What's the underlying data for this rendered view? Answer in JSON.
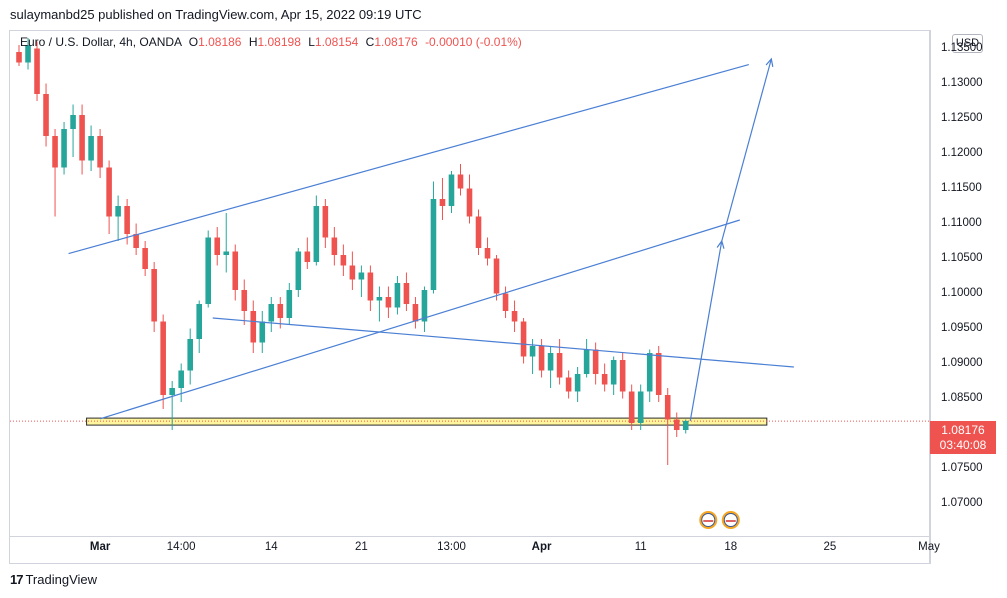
{
  "header": {
    "publisher": "sulaymanbd25 published on TradingView.com, Apr 15, 2022 09:19 UTC"
  },
  "legend": {
    "symbol": "Euro / U.S. Dollar, 4h, OANDA",
    "open_label": "O",
    "open": "1.08186",
    "high_label": "H",
    "high": "1.08198",
    "low_label": "L",
    "low": "1.08154",
    "close_label": "C",
    "close": "1.08176",
    "change": "-0.00010 (-0.01%)"
  },
  "currency_button": "USD",
  "last_price": {
    "price": "1.08176",
    "countdown": "03:40:08"
  },
  "footer": {
    "brand_mark": "17",
    "brand": "TradingView"
  },
  "colors": {
    "up": "#26a69a",
    "down": "#ef5350",
    "lines": "#4a7fd4",
    "zone_fill": "#fff59d",
    "zone_border": "#2b2b2b"
  },
  "chart_data": {
    "type": "candlestick",
    "instrument": "Euro / U.S. Dollar",
    "interval": "4h",
    "ylim": [
      1.0655,
      1.1375
    ],
    "y_ticks": [
      "1.13500",
      "1.13000",
      "1.12500",
      "1.12000",
      "1.11500",
      "1.11000",
      "1.10500",
      "1.10000",
      "1.09500",
      "1.09000",
      "1.08500",
      "1.08000",
      "1.07500",
      "1.07000"
    ],
    "x_ticks": [
      {
        "label": "Mar",
        "bold": true
      },
      {
        "label": "14:00",
        "bold": false
      },
      {
        "label": "14",
        "bold": false
      },
      {
        "label": "21",
        "bold": false
      },
      {
        "label": "13:00",
        "bold": false
      },
      {
        "label": "Apr",
        "bold": true
      },
      {
        "label": "11",
        "bold": false
      },
      {
        "label": "18",
        "bold": false
      },
      {
        "label": "25",
        "bold": false
      },
      {
        "label": "May",
        "bold": false
      }
    ],
    "xlim": [
      0,
      102
    ],
    "x_tick_positions": [
      10,
      19,
      29,
      39,
      49,
      59,
      70,
      80,
      91,
      102
    ],
    "candles": [
      [
        1,
        1.1345,
        1.1355,
        1.1325,
        1.133
      ],
      [
        2,
        1.133,
        1.1365,
        1.132,
        1.1355
      ],
      [
        3,
        1.135,
        1.136,
        1.1275,
        1.1285
      ],
      [
        4,
        1.1285,
        1.13,
        1.121,
        1.1225
      ],
      [
        5,
        1.1225,
        1.1235,
        1.111,
        1.118
      ],
      [
        6,
        1.118,
        1.1245,
        1.117,
        1.1235
      ],
      [
        7,
        1.1235,
        1.127,
        1.1195,
        1.1255
      ],
      [
        8,
        1.1255,
        1.127,
        1.117,
        1.119
      ],
      [
        9,
        1.119,
        1.124,
        1.1175,
        1.1225
      ],
      [
        10,
        1.1225,
        1.1235,
        1.1165,
        1.118
      ],
      [
        11,
        1.118,
        1.119,
        1.1085,
        1.111
      ],
      [
        12,
        1.111,
        1.114,
        1.1075,
        1.1125
      ],
      [
        13,
        1.1125,
        1.1135,
        1.107,
        1.1085
      ],
      [
        14,
        1.1085,
        1.11,
        1.1055,
        1.1065
      ],
      [
        15,
        1.1065,
        1.1075,
        1.1025,
        1.1035
      ],
      [
        16,
        1.1035,
        1.1045,
        1.0945,
        1.096
      ],
      [
        17,
        1.096,
        1.097,
        1.0835,
        1.0855
      ],
      [
        18,
        1.0855,
        1.0875,
        1.0805,
        1.0865
      ],
      [
        19,
        1.0865,
        1.09,
        1.0845,
        1.089
      ],
      [
        20,
        1.089,
        1.095,
        1.087,
        1.0935
      ],
      [
        21,
        1.0935,
        1.099,
        1.0915,
        1.0985
      ],
      [
        22,
        1.0985,
        1.109,
        1.098,
        1.108
      ],
      [
        23,
        1.108,
        1.1095,
        1.104,
        1.1055
      ],
      [
        24,
        1.1055,
        1.1115,
        1.103,
        1.106
      ],
      [
        25,
        1.106,
        1.107,
        1.099,
        1.1005
      ],
      [
        26,
        1.1005,
        1.102,
        1.0955,
        1.0975
      ],
      [
        27,
        1.0975,
        1.099,
        1.0915,
        1.093
      ],
      [
        28,
        1.093,
        1.0975,
        1.0915,
        1.096
      ],
      [
        29,
        1.096,
        1.0995,
        1.0945,
        1.0985
      ],
      [
        30,
        1.0985,
        1.0995,
        1.095,
        1.0965
      ],
      [
        31,
        1.0965,
        1.1015,
        1.0955,
        1.1005
      ],
      [
        32,
        1.1005,
        1.1065,
        1.0995,
        1.106
      ],
      [
        33,
        1.106,
        1.108,
        1.1035,
        1.1045
      ],
      [
        34,
        1.1045,
        1.114,
        1.104,
        1.1125
      ],
      [
        35,
        1.1125,
        1.1135,
        1.1065,
        1.108
      ],
      [
        36,
        1.108,
        1.1095,
        1.104,
        1.1055
      ],
      [
        37,
        1.1055,
        1.107,
        1.1025,
        1.104
      ],
      [
        38,
        1.104,
        1.106,
        1.1005,
        1.102
      ],
      [
        39,
        1.102,
        1.104,
        1.0995,
        1.103
      ],
      [
        40,
        1.103,
        1.104,
        1.0975,
        1.099
      ],
      [
        41,
        1.099,
        1.101,
        1.096,
        1.0995
      ],
      [
        42,
        1.0995,
        1.101,
        1.0965,
        1.098
      ],
      [
        43,
        1.098,
        1.1025,
        1.097,
        1.1015
      ],
      [
        44,
        1.1015,
        1.103,
        1.0975,
        1.0985
      ],
      [
        45,
        1.0985,
        1.0995,
        1.095,
        1.096
      ],
      [
        46,
        1.096,
        1.101,
        1.0945,
        1.1005
      ],
      [
        47,
        1.1005,
        1.116,
        1.1,
        1.1135
      ],
      [
        48,
        1.1135,
        1.1165,
        1.1105,
        1.1125
      ],
      [
        49,
        1.1125,
        1.1175,
        1.1115,
        1.117
      ],
      [
        50,
        1.117,
        1.1185,
        1.114,
        1.115
      ],
      [
        51,
        1.115,
        1.117,
        1.11,
        1.111
      ],
      [
        52,
        1.111,
        1.112,
        1.1055,
        1.1065
      ],
      [
        53,
        1.1065,
        1.108,
        1.104,
        1.105
      ],
      [
        54,
        1.105,
        1.1055,
        1.099,
        1.1
      ],
      [
        55,
        1.1,
        1.101,
        1.0965,
        1.0975
      ],
      [
        56,
        1.0975,
        1.099,
        1.0945,
        1.096
      ],
      [
        57,
        1.096,
        1.0965,
        1.09,
        1.091
      ],
      [
        58,
        1.091,
        1.0935,
        1.0885,
        1.0925
      ],
      [
        59,
        1.0925,
        1.0935,
        1.088,
        1.089
      ],
      [
        60,
        1.089,
        1.0925,
        1.0865,
        1.0915
      ],
      [
        61,
        1.0915,
        1.0935,
        1.087,
        1.088
      ],
      [
        62,
        1.088,
        1.089,
        1.085,
        1.086
      ],
      [
        63,
        1.086,
        1.0895,
        1.0845,
        1.0885
      ],
      [
        64,
        1.0885,
        1.0935,
        1.088,
        1.092
      ],
      [
        65,
        1.092,
        1.093,
        1.087,
        1.0885
      ],
      [
        66,
        1.0885,
        1.09,
        1.086,
        1.087
      ],
      [
        67,
        1.087,
        1.091,
        1.0855,
        1.0905
      ],
      [
        68,
        1.0905,
        1.0915,
        1.085,
        1.086
      ],
      [
        69,
        1.086,
        1.087,
        1.0805,
        1.0815
      ],
      [
        70,
        1.0815,
        1.087,
        1.0805,
        1.086
      ],
      [
        71,
        1.086,
        1.092,
        1.0845,
        1.0915
      ],
      [
        72,
        1.0915,
        1.0925,
        1.0845,
        1.0855
      ],
      [
        73,
        1.0855,
        1.0865,
        1.0755,
        1.082
      ],
      [
        74,
        1.082,
        1.083,
        1.0795,
        1.0805
      ],
      [
        75,
        1.0805,
        1.082,
        1.08,
        1.0818
      ]
    ],
    "drawings": {
      "upper_channel_line": [
        [
          6.5,
          1.1057
        ],
        [
          82,
          1.1327
        ]
      ],
      "lower_channel_line": [
        [
          10,
          1.0821
        ],
        [
          81,
          1.1105
        ]
      ],
      "descending_trendline": [
        [
          22.5,
          1.0965
        ],
        [
          87,
          1.0895
        ]
      ],
      "support_zone": {
        "x0": 8.5,
        "x1": 84,
        "y_low": 1.0812,
        "y_high": 1.0822
      },
      "projection_arrow_1": [
        [
          75.5,
          1.0818
        ],
        [
          79,
          1.1075
        ]
      ],
      "projection_arrow_2": [
        [
          79,
          1.1075
        ],
        [
          84.5,
          1.1335
        ]
      ],
      "last_price_line": 1.08176
    }
  }
}
